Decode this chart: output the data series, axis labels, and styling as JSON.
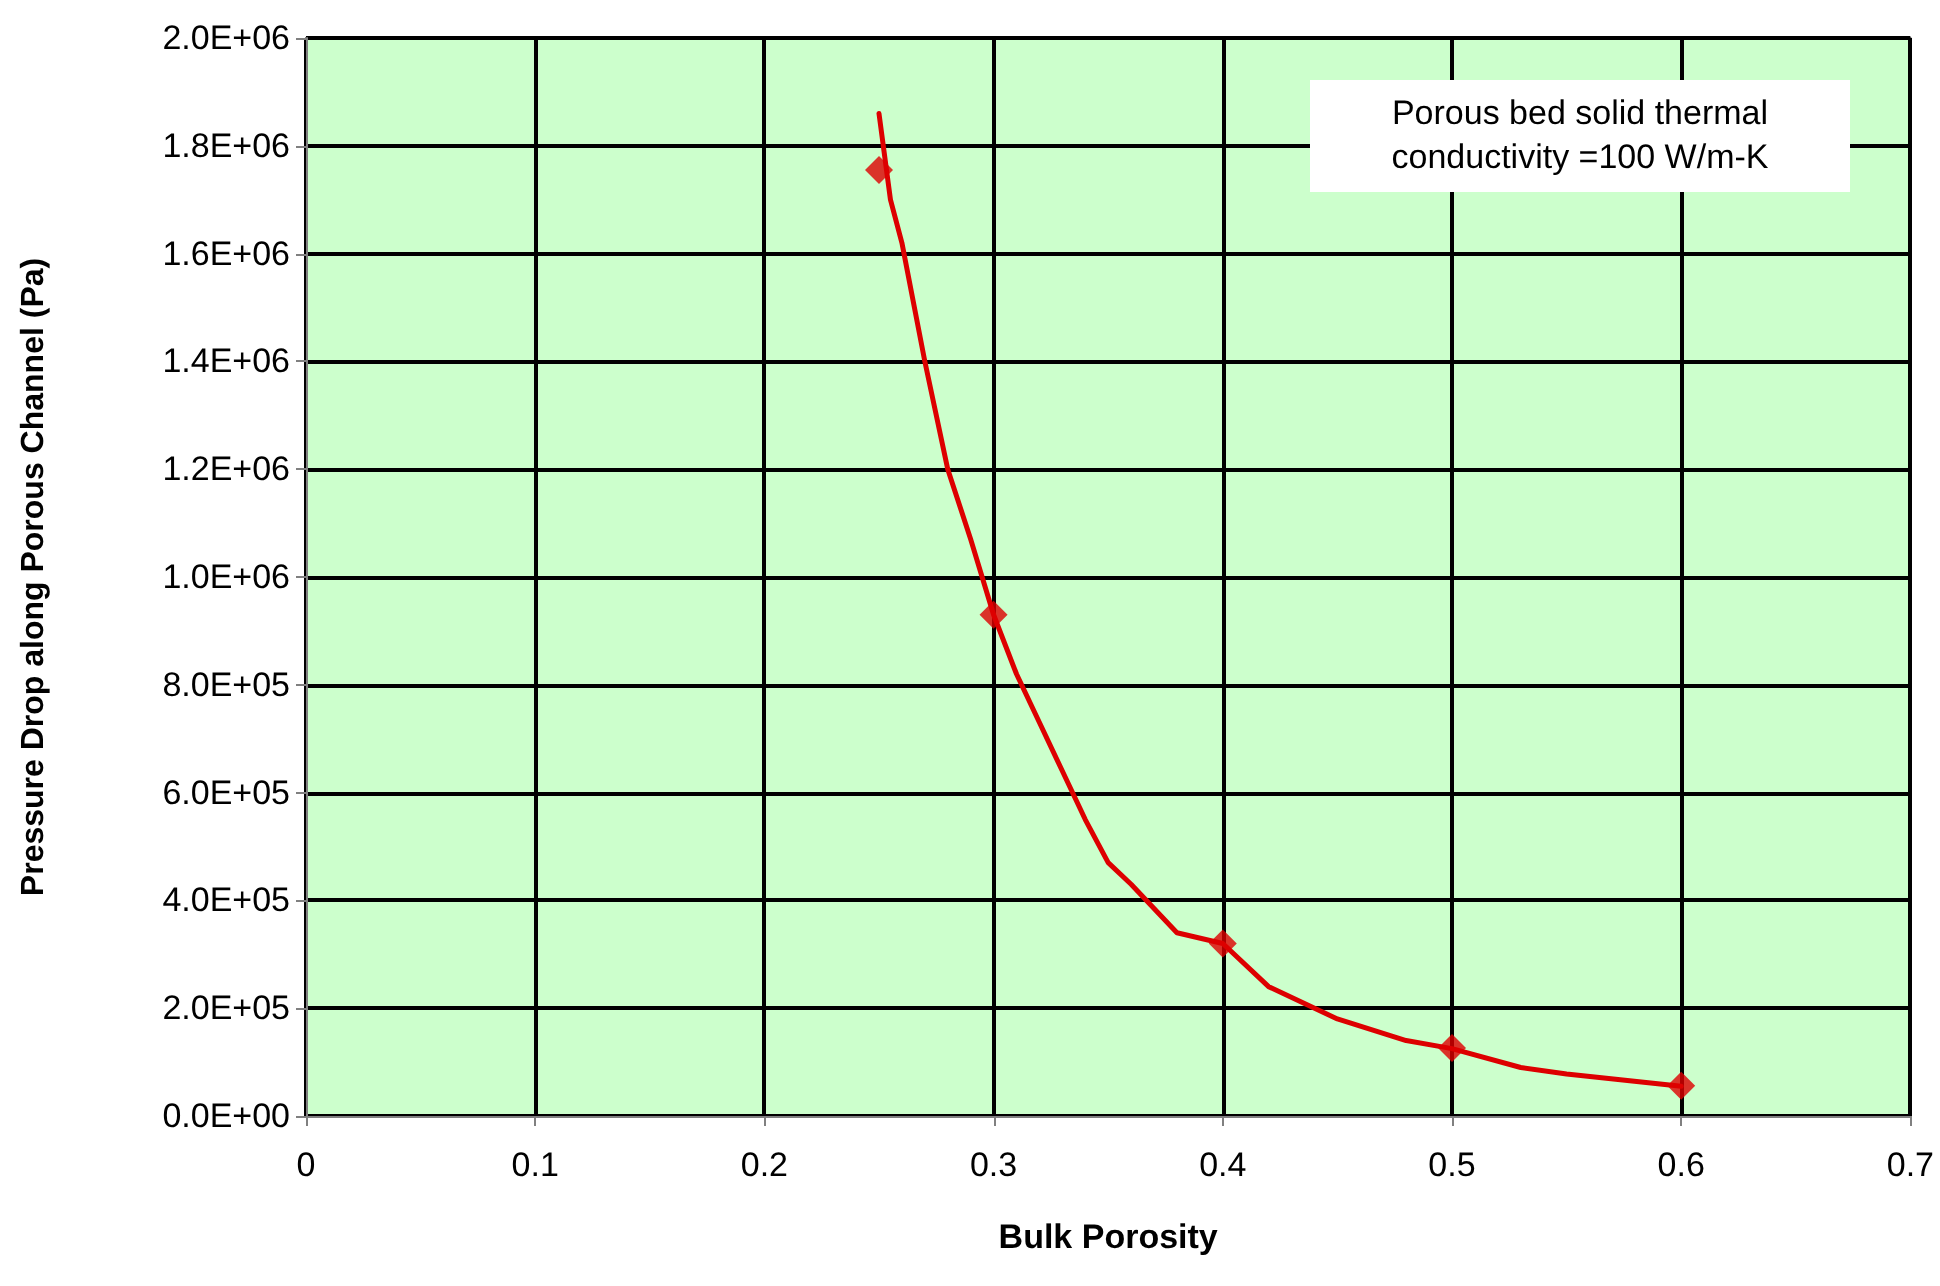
{
  "chart_data": {
    "type": "scatter",
    "xlabel": "Bulk Porosity",
    "ylabel": "Pressure Drop along Porous Channel (Pa)",
    "annotations": [
      "Porous bed solid thermal conductivity =100 W/m-K"
    ],
    "series": [
      {
        "type": "line",
        "color": "#dd0000",
        "marker": "none",
        "line_style": "solid",
        "x": [
          0.25,
          0.255,
          0.26,
          0.27,
          0.28,
          0.29,
          0.3,
          0.31,
          0.32,
          0.33,
          0.34,
          0.35,
          0.36,
          0.38,
          0.4,
          0.42,
          0.45,
          0.48,
          0.5,
          0.53,
          0.55,
          0.6
        ],
        "values": [
          1860000,
          1700000,
          1620000,
          1400000,
          1200000,
          1070000,
          930000,
          820000,
          730000,
          640000,
          550000,
          470000,
          430000,
          340000,
          320000,
          240000,
          180000,
          140000,
          125000,
          90000,
          78000,
          55000
        ]
      },
      {
        "color": "#dd0000",
        "marker": "diamond",
        "x": [
          0.25,
          0.3,
          0.4,
          0.5,
          0.6
        ],
        "values": [
          1755000,
          930000,
          320000,
          126000,
          56000
        ]
      }
    ],
    "xlim": [
      0,
      0.7
    ],
    "xticks": [
      0,
      0.1,
      0.2,
      0.3,
      0.4,
      0.5,
      0.6,
      0.7
    ],
    "ylim": [
      0,
      2000000
    ],
    "yticks": [
      {
        "value": 0,
        "label": "0.0E+00"
      },
      {
        "value": 200000,
        "label": "2.0E+05"
      },
      {
        "value": 400000,
        "label": "4.0E+05"
      },
      {
        "value": 600000,
        "label": "6.0E+05"
      },
      {
        "value": 800000,
        "label": "8.0E+05"
      },
      {
        "value": 1000000,
        "label": "1.0E+06"
      },
      {
        "value": 1200000,
        "label": "1.2E+06"
      },
      {
        "value": 1400000,
        "label": "1.4E+06"
      },
      {
        "value": 1600000,
        "label": "1.6E+06"
      },
      {
        "value": 1800000,
        "label": "1.8E+06"
      },
      {
        "value": 2000000,
        "label": "2.0E+06"
      }
    ],
    "grid": true
  }
}
